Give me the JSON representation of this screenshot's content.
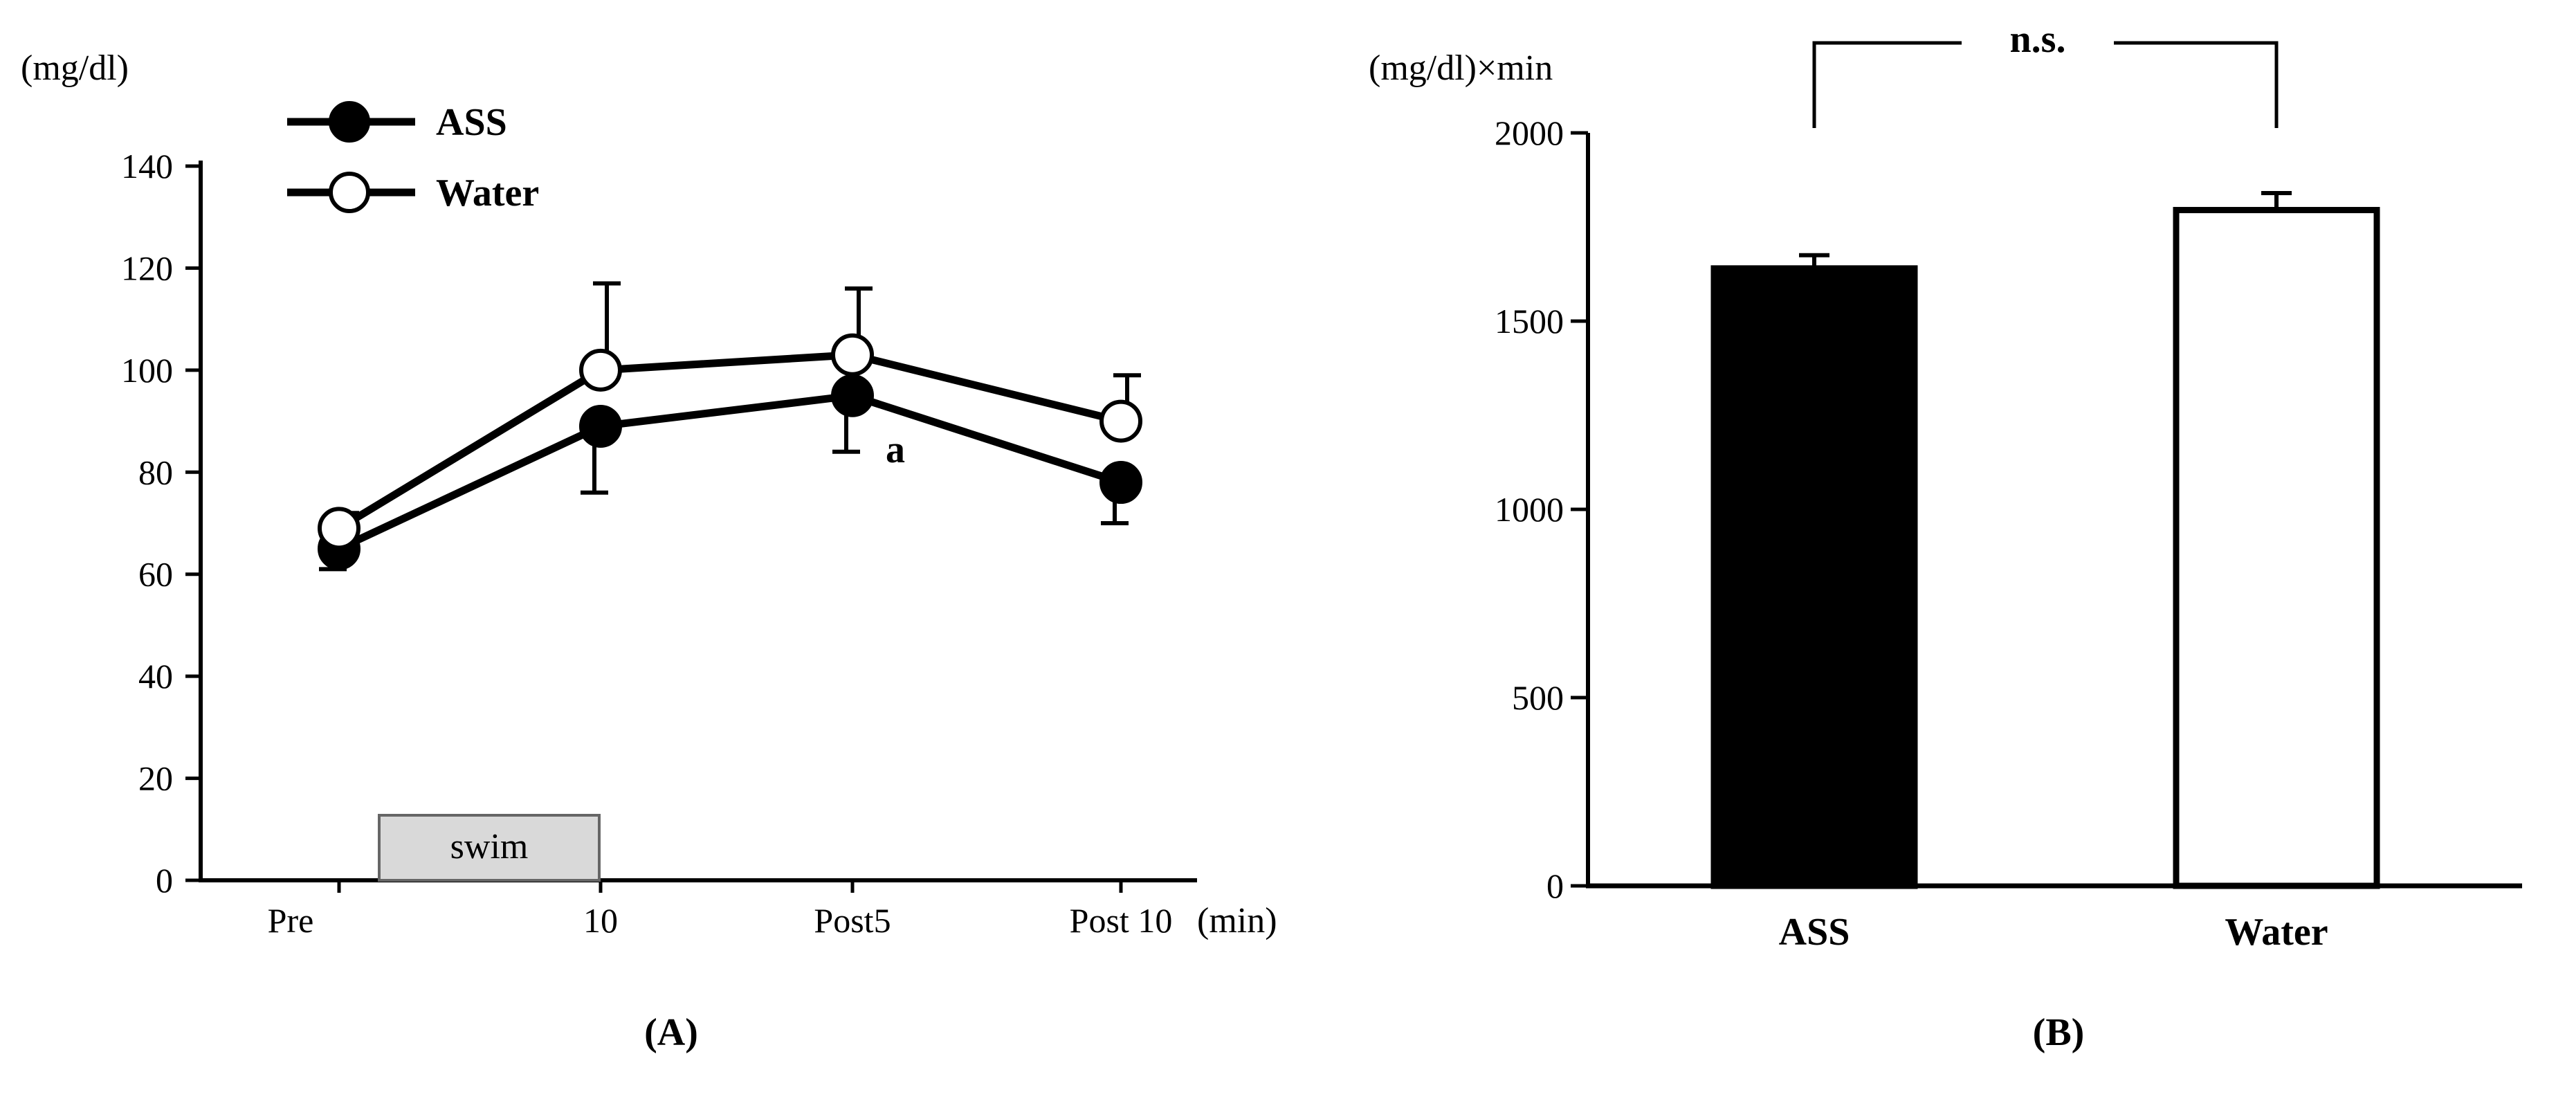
{
  "chart_data": [
    {
      "panel_label": "(A)",
      "type": "line",
      "ylabel": "(mg/dl)",
      "xunit": "(min)",
      "ylim": [
        0,
        140
      ],
      "yticks": [
        "0",
        "20",
        "40",
        "60",
        "80",
        "100",
        "120",
        "140"
      ],
      "categories": [
        "Pre",
        "10",
        "Post5",
        "Post 10"
      ],
      "shaded_band": {
        "label": "swim",
        "from": "Pre",
        "to": "10",
        "color": "#d9d9d9"
      },
      "series": [
        {
          "name": "ASS",
          "marker": "filled",
          "values": [
            65,
            89,
            95,
            78
          ],
          "errors": [
            4,
            13,
            11,
            8
          ]
        },
        {
          "name": "Water",
          "marker": "open",
          "values": [
            69,
            100,
            103,
            90
          ],
          "errors": [
            3,
            17,
            13,
            9
          ]
        }
      ],
      "annotations": [
        {
          "text": "a",
          "category": "Post5",
          "series": "ASS"
        }
      ],
      "legend_position": "top-left"
    },
    {
      "panel_label": "(B)",
      "type": "bar",
      "ylabel": "(mg/dl)×min",
      "ylim": [
        0,
        2000
      ],
      "yticks": [
        "0",
        "500",
        "1000",
        "1500",
        "2000"
      ],
      "categories": [
        "ASS",
        "Water"
      ],
      "values": [
        1640,
        1795
      ],
      "errors": [
        35,
        45
      ],
      "colors": [
        "#000000",
        "#ffffff"
      ],
      "significance": {
        "text": "n.s.",
        "between": [
          "ASS",
          "Water"
        ]
      }
    }
  ]
}
